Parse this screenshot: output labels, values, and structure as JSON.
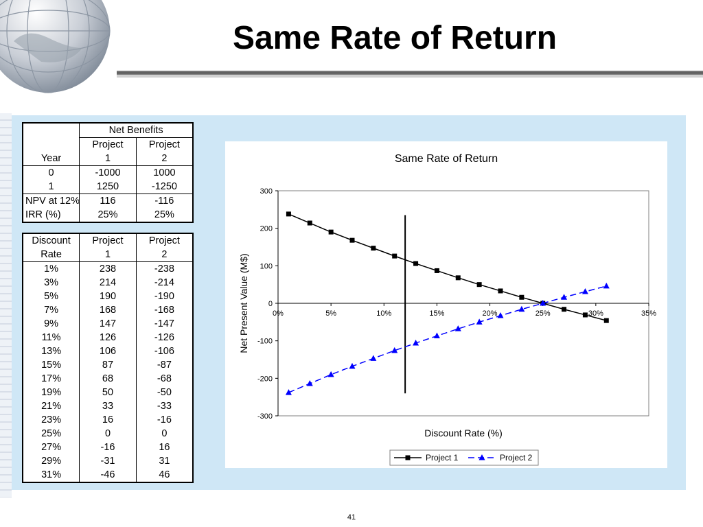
{
  "slide": {
    "title": "Same Rate of Return",
    "page_number": "41"
  },
  "table_top": {
    "group_header": "Net Benefits",
    "year_label": "Year",
    "project1_header": [
      "Project",
      "1"
    ],
    "project2_header": [
      "Project",
      "2"
    ],
    "rows": [
      [
        "0",
        "-1000",
        "1000"
      ],
      [
        "1",
        "1250",
        "-1250"
      ]
    ],
    "summary_rows": [
      [
        "NPV at 12%",
        "116",
        "-116"
      ],
      [
        "IRR (%)",
        "25%",
        "25%"
      ]
    ]
  },
  "table_rates": {
    "headers": [
      [
        "Discount",
        "Rate"
      ],
      [
        "Project",
        "1"
      ],
      [
        "Project",
        "2"
      ]
    ],
    "rows": [
      [
        "1%",
        "238",
        "-238"
      ],
      [
        "3%",
        "214",
        "-214"
      ],
      [
        "5%",
        "190",
        "-190"
      ],
      [
        "7%",
        "168",
        "-168"
      ],
      [
        "9%",
        "147",
        "-147"
      ],
      [
        "11%",
        "126",
        "-126"
      ],
      [
        "13%",
        "106",
        "-106"
      ],
      [
        "15%",
        "87",
        "-87"
      ],
      [
        "17%",
        "68",
        "-68"
      ],
      [
        "19%",
        "50",
        "-50"
      ],
      [
        "21%",
        "33",
        "-33"
      ],
      [
        "23%",
        "16",
        "-16"
      ],
      [
        "25%",
        "0",
        "0"
      ],
      [
        "27%",
        "-16",
        "16"
      ],
      [
        "29%",
        "-31",
        "31"
      ],
      [
        "31%",
        "-46",
        "46"
      ]
    ]
  },
  "chart_data": {
    "type": "line",
    "title": "Same Rate of Return",
    "xlabel": "Discount Rate (%)",
    "ylabel": "Net Present Value (M$)",
    "xlim": [
      0,
      35
    ],
    "ylim": [
      -300,
      300
    ],
    "x_ticks": [
      0,
      5,
      10,
      15,
      20,
      25,
      30,
      35
    ],
    "x_tick_labels": [
      "0%",
      "5%",
      "10%",
      "15%",
      "20%",
      "25%",
      "30%",
      "35%"
    ],
    "y_ticks": [
      300,
      200,
      100,
      0,
      -100,
      -200,
      -300
    ],
    "y_tick_labels": [
      "300",
      "200",
      "100",
      "0",
      "-100",
      "-200",
      "-300"
    ],
    "x": [
      1,
      3,
      5,
      7,
      9,
      11,
      13,
      15,
      17,
      19,
      21,
      23,
      25,
      27,
      29,
      31
    ],
    "series": [
      {
        "name": "Project 1",
        "color": "#000000",
        "marker": "square",
        "dash": "solid",
        "values": [
          238,
          214,
          190,
          168,
          147,
          126,
          106,
          87,
          68,
          50,
          33,
          16,
          0,
          -16,
          -31,
          -46
        ]
      },
      {
        "name": "Project 2",
        "color": "#0000ff",
        "marker": "triangle",
        "dash": "dashed",
        "values": [
          -238,
          -214,
          -190,
          -168,
          -147,
          -126,
          -106,
          -87,
          -68,
          -50,
          -33,
          -16,
          0,
          16,
          31,
          46
        ]
      }
    ],
    "reference_line": {
      "x": 12,
      "y_from": -240,
      "y_to": 235
    },
    "grid": false,
    "legend": "bottom"
  }
}
